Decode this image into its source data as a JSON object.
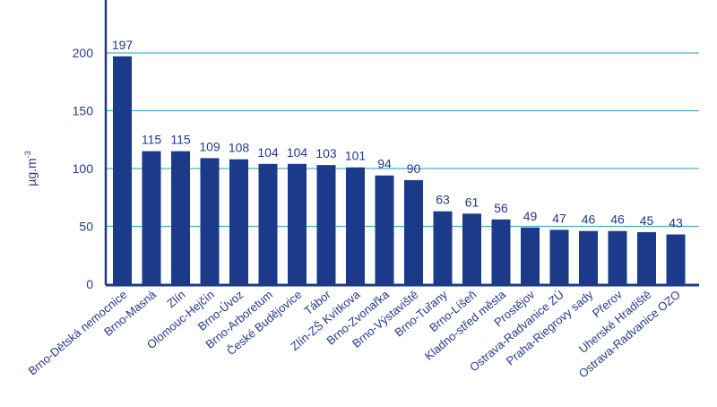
{
  "chart_data": {
    "type": "bar",
    "title": "",
    "xlabel": "",
    "ylabel": "µg.m-3",
    "ylabel_main": "µg.m",
    "ylabel_sup": "-3",
    "ylim": [
      0,
      250
    ],
    "yticks": [
      0,
      50,
      100,
      150,
      200,
      250
    ],
    "grid": true,
    "legend": "none",
    "colors": {
      "bar": "#1c3a8a",
      "grid": "#46b3c3",
      "axis": "#1c3a8a",
      "text": "#26398a"
    },
    "categories": [
      "Brno-Dětská nemocnice",
      "Brno-Masná",
      "Zlín",
      "Olomouc-Hejčín",
      "Brno-Úvoz",
      "Brno-Arboretum",
      "České Budějovice",
      "Tábor",
      "Zlín-ZŠ Kvítkova",
      "Brno-Zvonařka",
      "Brno-Výstaviště",
      "Brno-Tuřany",
      "Brno-Líšeň",
      "Kladno-střed města",
      "Prostějov",
      "Ostrava-Radvanice ZÚ",
      "Praha-Riegrovy sady",
      "Přerov",
      "Uherské Hradiště",
      "Ostrava-Radvanice OZO"
    ],
    "values": [
      197,
      115,
      115,
      109,
      108,
      104,
      104,
      103,
      101,
      94,
      90,
      63,
      61,
      56,
      49,
      47,
      46,
      46,
      45,
      43
    ]
  }
}
